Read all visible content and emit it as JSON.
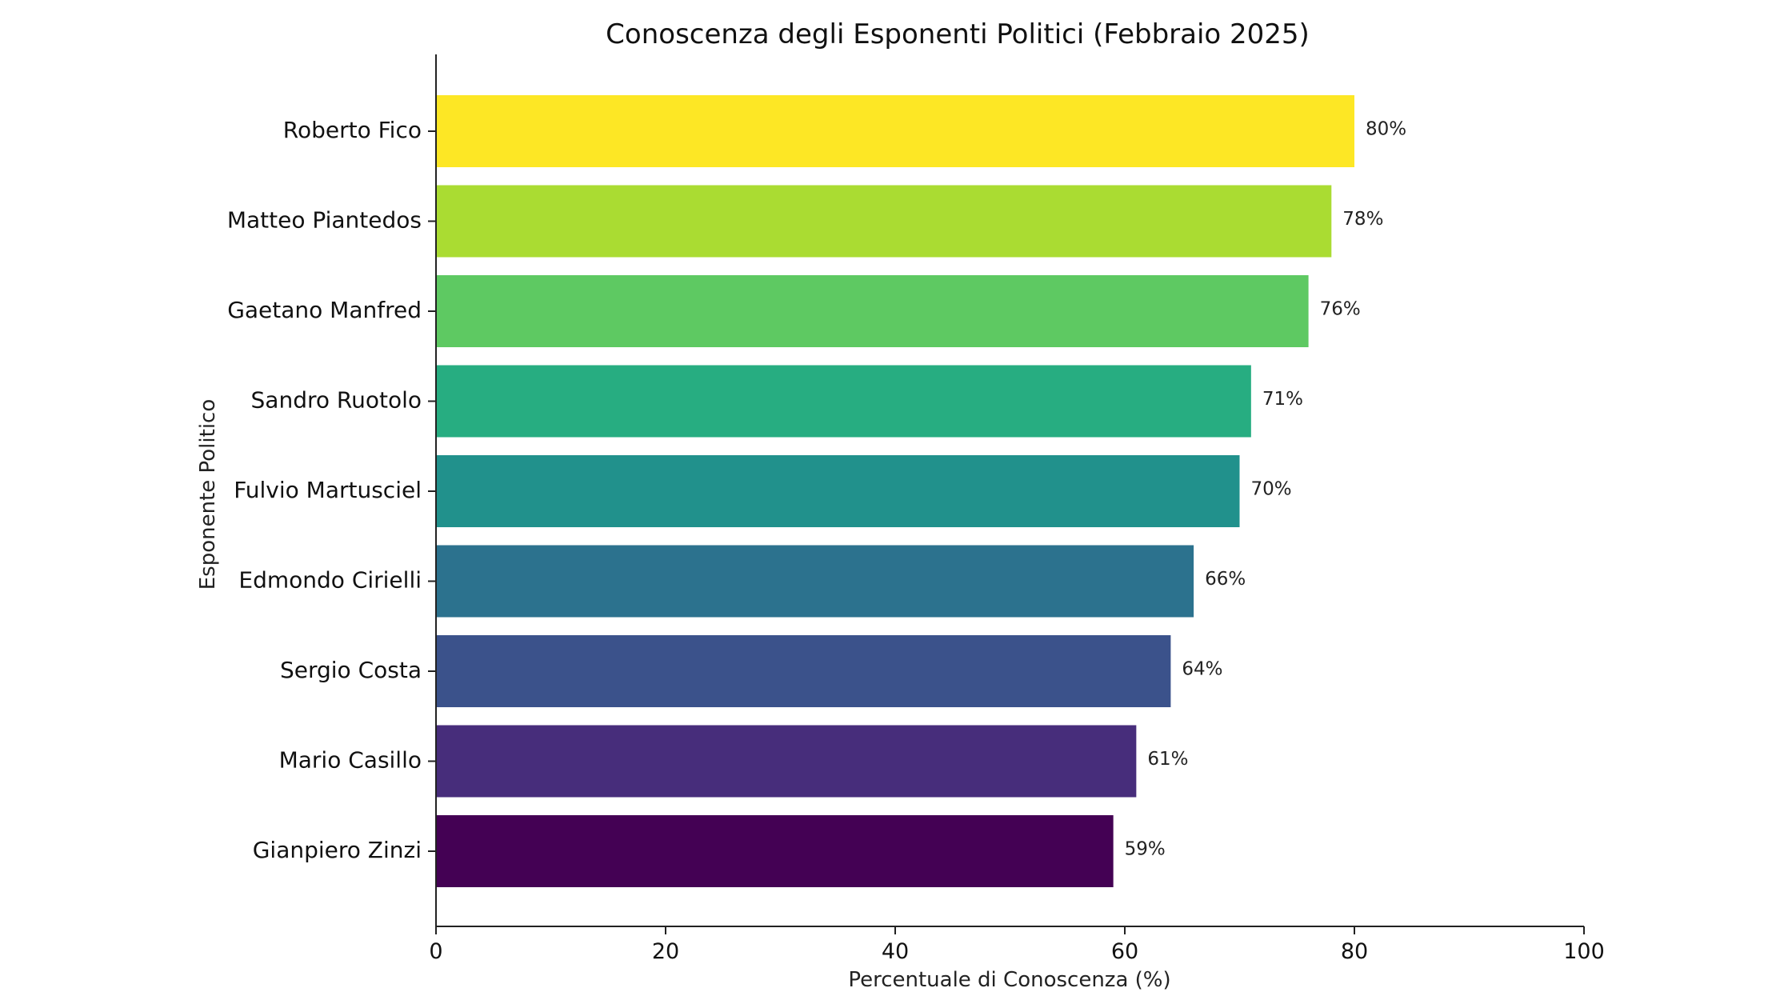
{
  "chart_data": {
    "type": "bar",
    "orientation": "horizontal",
    "title": "Conoscenza degli Esponenti Politici (Febbraio 2025)",
    "xlabel": "Percentuale di Conoscenza (%)",
    "ylabel": "Esponente Politico",
    "xlim": [
      0,
      100
    ],
    "xticks": [
      0,
      20,
      40,
      60,
      80,
      100
    ],
    "grid": false,
    "categories": [
      "Roberto Fico",
      "Matteo Piantedos",
      "Gaetano Manfred",
      "Sandro Ruotolo",
      "Fulvio Martusciel",
      "Edmondo Cirielli",
      "Sergio Costa",
      "Mario Casillo",
      "Gianpiero Zinzi"
    ],
    "values": [
      80,
      78,
      76,
      71,
      70,
      66,
      64,
      61,
      59
    ],
    "value_labels": [
      "80%",
      "78%",
      "76%",
      "71%",
      "70%",
      "66%",
      "64%",
      "61%",
      "59%"
    ],
    "colors": [
      "#fde725",
      "#aadc32",
      "#5ec962",
      "#27ad81",
      "#21918c",
      "#2c728e",
      "#3b528b",
      "#472d7b",
      "#440154"
    ]
  }
}
